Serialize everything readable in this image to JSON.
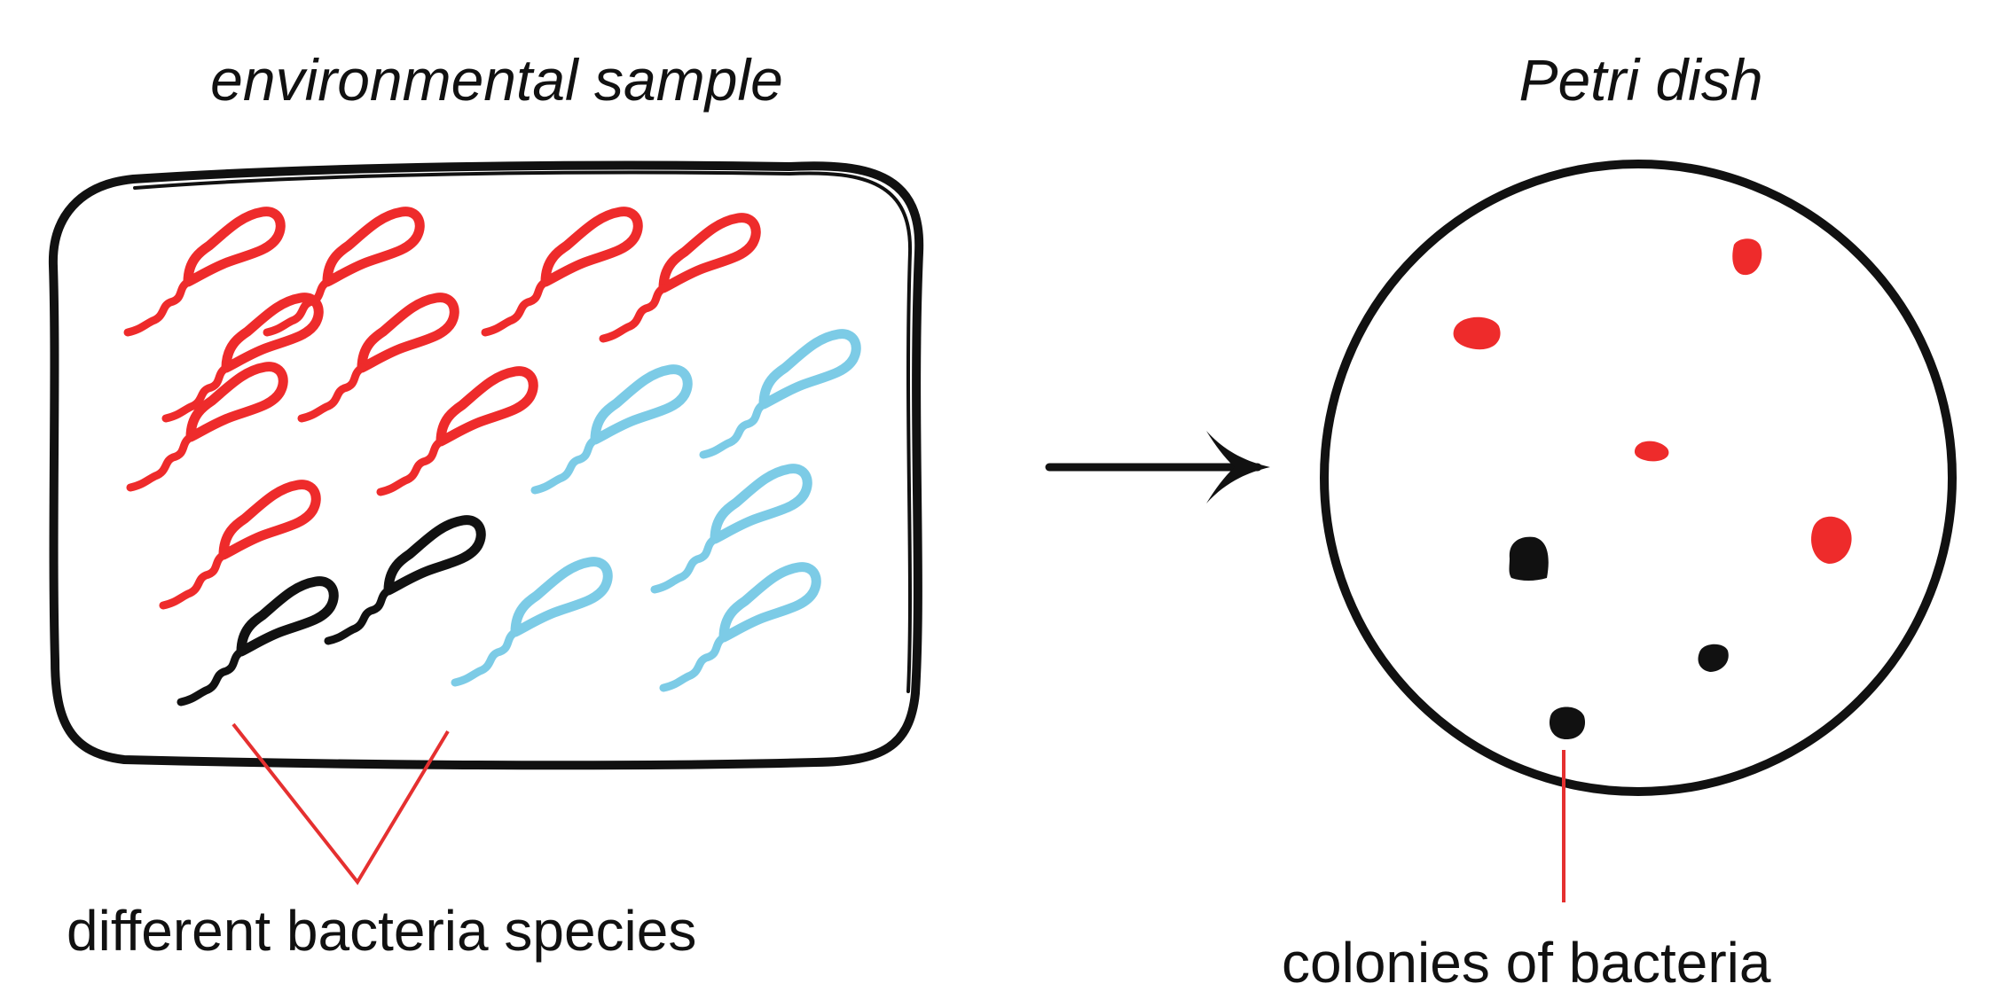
{
  "titles": {
    "sample": "environmental sample",
    "dish": "Petri dish"
  },
  "labels": {
    "species": "different bacteria species",
    "colonies": "colonies of bacteria"
  },
  "colors": {
    "ink": "#111111",
    "red": "#ee2b2b",
    "blue": "#7ccbe6",
    "black": "#111111",
    "callout": "#e53030"
  },
  "bacteria_colors": [
    "red",
    "red",
    "red",
    "red",
    "red",
    "red",
    "red",
    "red",
    "blue",
    "blue",
    "red",
    "blue",
    "black",
    "black",
    "blue",
    "blue"
  ],
  "colony_colors": [
    "red",
    "red",
    "red",
    "red",
    "black",
    "black",
    "black"
  ],
  "arrow_icon": "right-arrow-icon"
}
